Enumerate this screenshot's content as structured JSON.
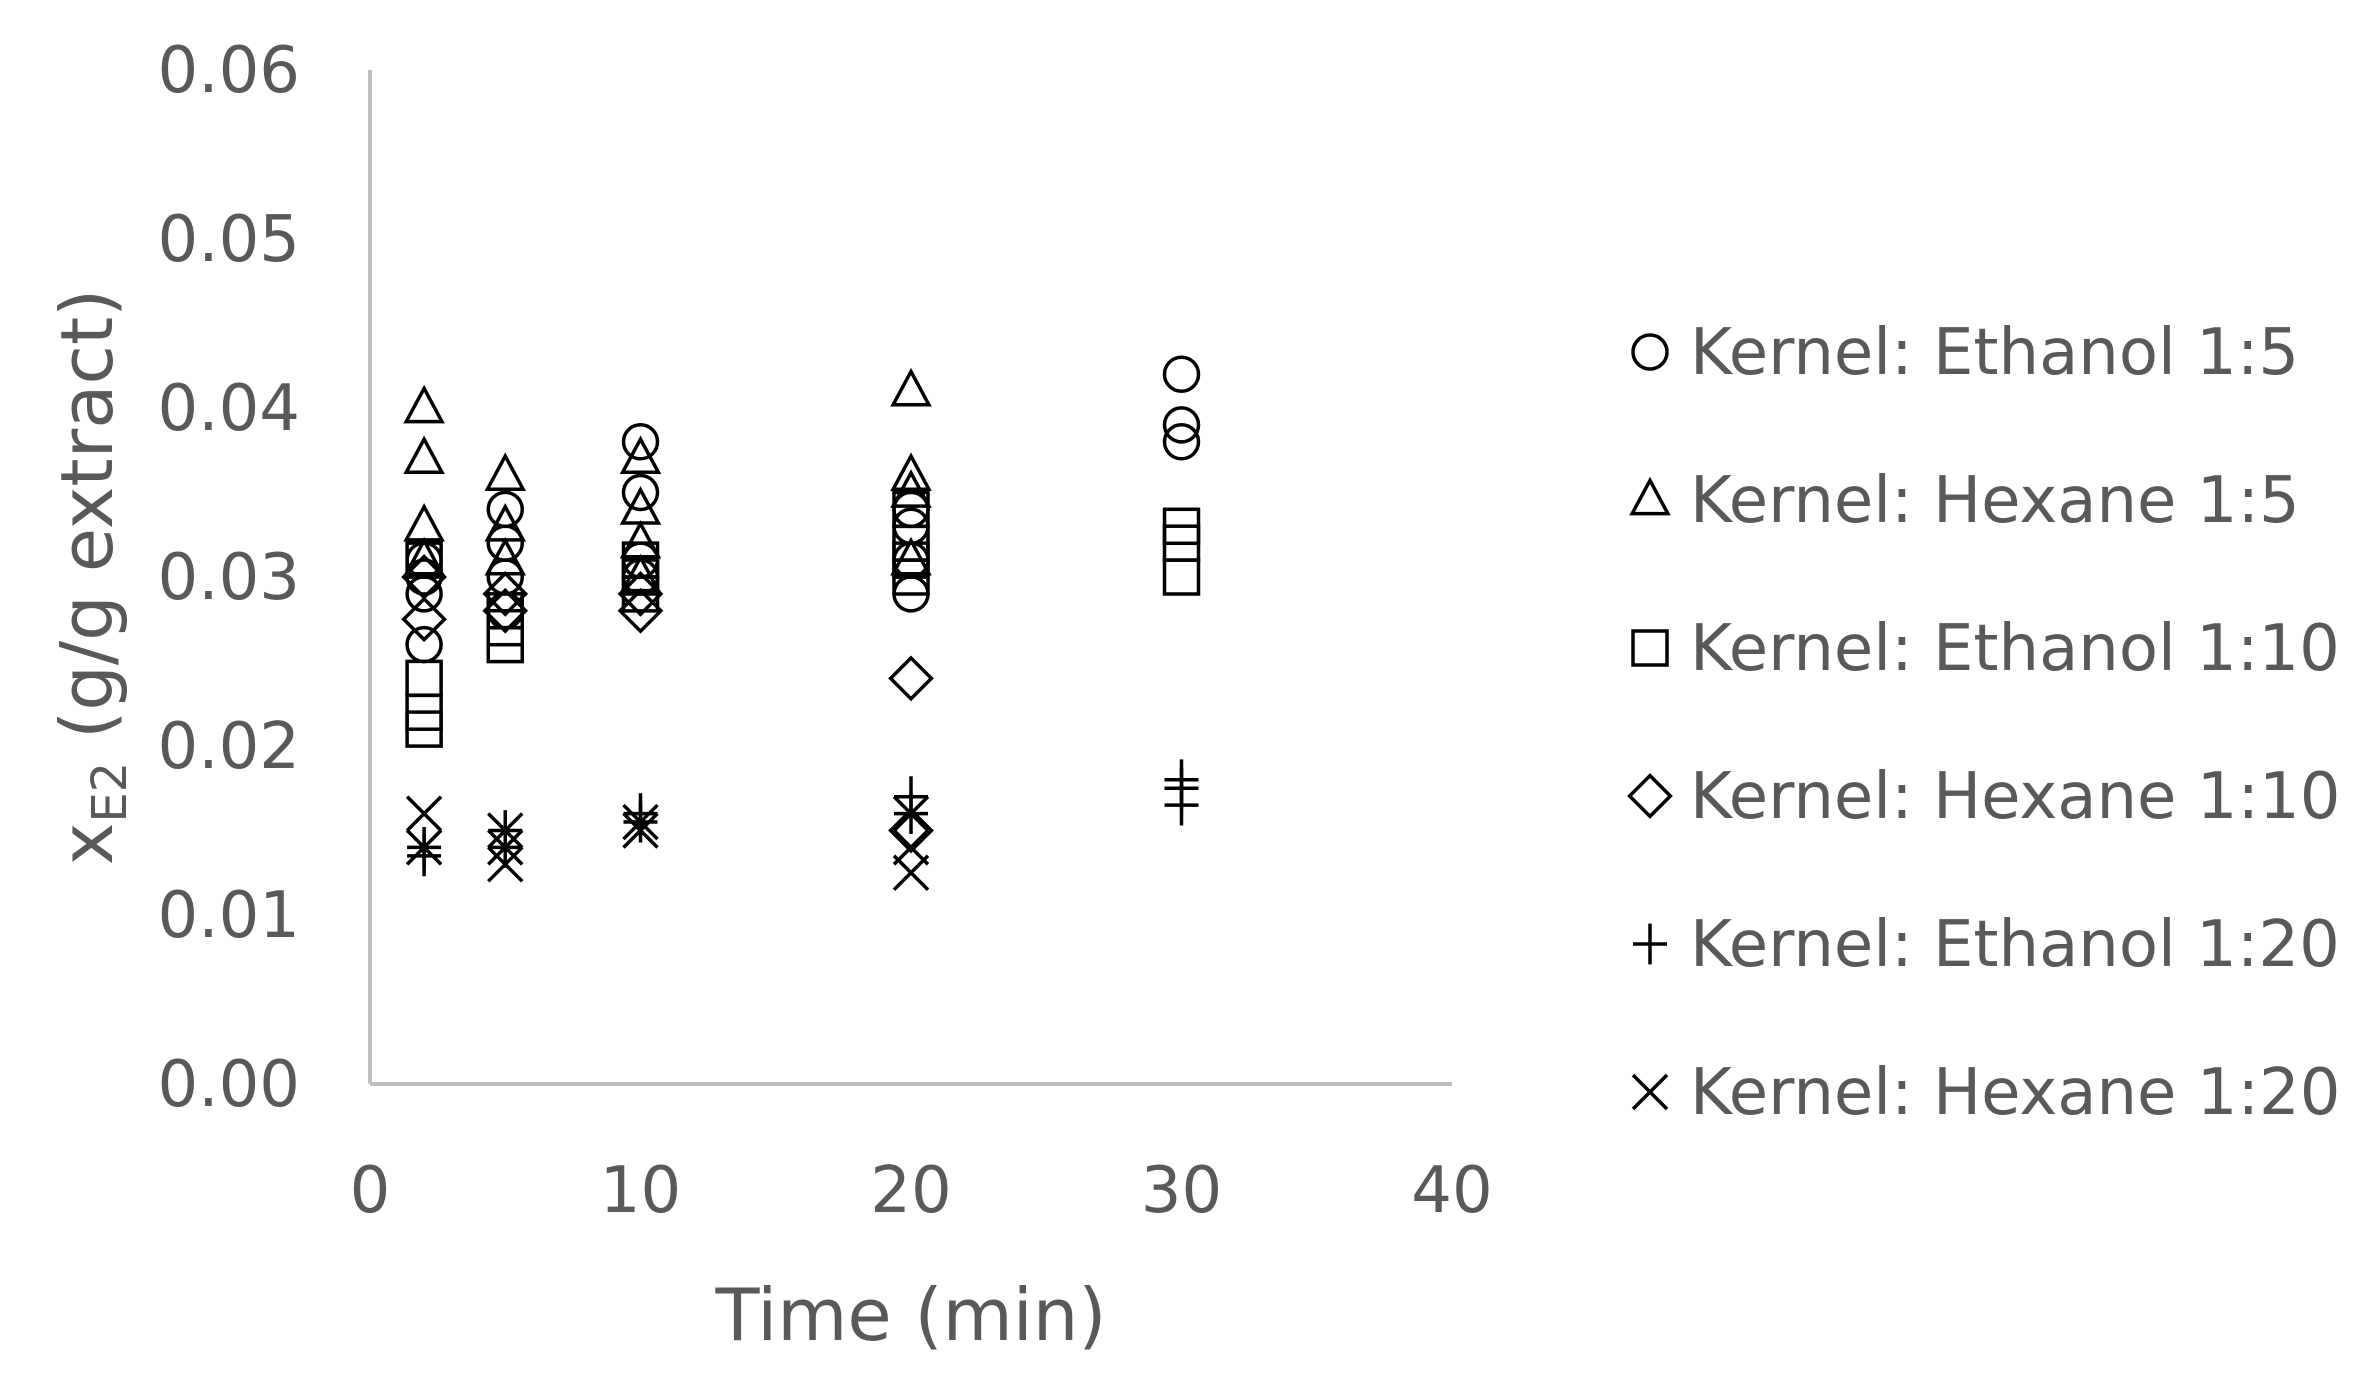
{
  "chart_data": {
    "type": "scatter",
    "title": "",
    "xlabel": "Time (min)",
    "ylabel_main": "x",
    "ylabel_sub": "E2",
    "ylabel_rest": " (g/g extract)",
    "xlim": [
      0,
      40
    ],
    "ylim": [
      0,
      0.06
    ],
    "xticks": [
      "0",
      "10",
      "20",
      "30",
      "40"
    ],
    "yticks": [
      "0.00",
      "0.01",
      "0.02",
      "0.03",
      "0.04",
      "0.05",
      "0.06"
    ],
    "grid": false,
    "legend_position": "right",
    "series": [
      {
        "name": "Kernel: Ethanol 1:5",
        "marker": "circle",
        "x": [
          2,
          2,
          2,
          2,
          5,
          5,
          5,
          5,
          10,
          10,
          10,
          10,
          20,
          20,
          20,
          20,
          30,
          30,
          30
        ],
        "y": [
          0.026,
          0.029,
          0.03,
          0.031,
          0.028,
          0.03,
          0.032,
          0.034,
          0.03,
          0.031,
          0.035,
          0.038,
          0.029,
          0.031,
          0.033,
          0.034,
          0.038,
          0.039,
          0.042
        ]
      },
      {
        "name": "Kernel: Hexane 1:5",
        "marker": "triangle",
        "x": [
          2,
          2,
          2,
          2,
          5,
          5,
          5,
          10,
          10,
          10,
          10,
          20,
          20,
          20,
          20
        ],
        "y": [
          0.031,
          0.033,
          0.037,
          0.04,
          0.031,
          0.033,
          0.036,
          0.03,
          0.032,
          0.034,
          0.037,
          0.031,
          0.035,
          0.036,
          0.041
        ]
      },
      {
        "name": "Kernel: Ethanol 1:10",
        "marker": "square",
        "x": [
          2,
          2,
          2,
          2,
          5,
          5,
          5,
          10,
          10,
          10,
          20,
          20,
          20,
          20,
          30,
          30,
          30
        ],
        "y": [
          0.021,
          0.022,
          0.024,
          0.031,
          0.026,
          0.027,
          0.028,
          0.029,
          0.03,
          0.031,
          0.03,
          0.031,
          0.032,
          0.034,
          0.03,
          0.032,
          0.033
        ]
      },
      {
        "name": "Kernel: Hexane 1:10",
        "marker": "diamond",
        "x": [
          2,
          2,
          5,
          5,
          10,
          10,
          20,
          20
        ],
        "y": [
          0.0275,
          0.03,
          0.028,
          0.029,
          0.028,
          0.029,
          0.024,
          0.015
        ]
      },
      {
        "name": "Kernel: Ethanol 1:20",
        "marker": "plus",
        "x": [
          2,
          2,
          5,
          5,
          10,
          10,
          20,
          20,
          30,
          30,
          30
        ],
        "y": [
          0.0135,
          0.014,
          0.014,
          0.015,
          0.0155,
          0.016,
          0.016,
          0.017,
          0.0165,
          0.0175,
          0.018
        ]
      },
      {
        "name": "Kernel: Hexane 1:20",
        "marker": "x",
        "x": [
          2,
          2,
          5,
          5,
          5,
          10,
          10,
          20,
          20,
          20
        ],
        "y": [
          0.014,
          0.016,
          0.013,
          0.014,
          0.015,
          0.015,
          0.0155,
          0.0125,
          0.014,
          0.016
        ]
      }
    ]
  }
}
